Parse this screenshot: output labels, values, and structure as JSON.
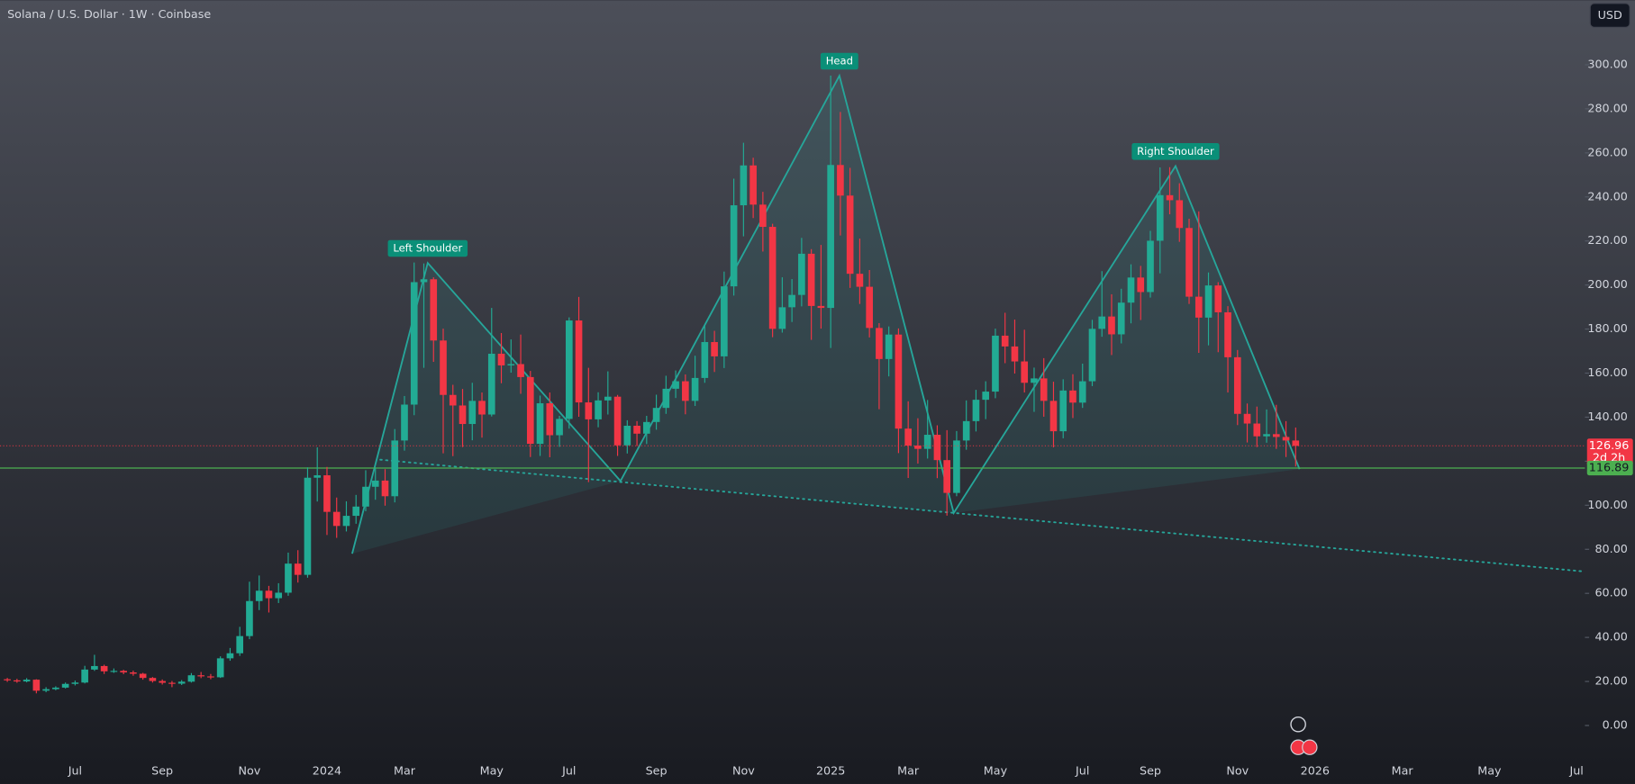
{
  "chart_data": {
    "type": "candlestick",
    "title": "Solana / U.S. Dollar · 1W · Coinbase",
    "currency": "USD",
    "up_color": "#22ab94",
    "down_color": "#f23645",
    "pattern_color": "#26a69a",
    "categories": [
      null,
      null,
      null,
      null,
      null,
      null,
      null,
      "Jul",
      null,
      null,
      null,
      null,
      null,
      null,
      null,
      null,
      "Sep",
      null,
      null,
      null,
      null,
      null,
      null,
      null,
      null,
      "Nov",
      null,
      null,
      null,
      null,
      null,
      null,
      null,
      "2024",
      null,
      null,
      null,
      null,
      null,
      null,
      null,
      "Mar",
      null,
      null,
      null,
      null,
      null,
      null,
      null,
      null,
      "May",
      null,
      null,
      null,
      null,
      null,
      null,
      null,
      "Jul",
      null,
      null,
      null,
      null,
      null,
      null,
      null,
      null,
      "Sep",
      null,
      null,
      null,
      null,
      null,
      null,
      null,
      null,
      "Nov",
      null,
      null,
      null,
      null,
      null,
      null,
      null,
      null,
      "2025",
      null,
      null,
      null,
      null,
      null,
      null,
      null,
      "Mar",
      null,
      null,
      null,
      null,
      null,
      null,
      null,
      null,
      "May",
      null,
      null,
      null,
      null,
      null,
      null,
      null,
      null,
      "Jul",
      null,
      null,
      null,
      null,
      null,
      null,
      "Sep",
      null,
      null,
      null,
      null,
      null,
      null,
      null,
      null,
      "Nov",
      null,
      null,
      null,
      null,
      null,
      null,
      null,
      "2026",
      null,
      null,
      null,
      null,
      null,
      null,
      null,
      null,
      "Mar",
      null,
      null,
      null,
      null,
      null,
      null,
      null,
      null,
      "May",
      null,
      null,
      null,
      null,
      null,
      null,
      null,
      null,
      "Jul",
      null
    ],
    "open": [
      21.0,
      20.5,
      20.0,
      20.8,
      15.8,
      16.5,
      17.2,
      18.9,
      19.5,
      25.4,
      27.0,
      24.6,
      24.8,
      24.1,
      23.5,
      21.6,
      20.2,
      19.4,
      19.0,
      19.9,
      22.8,
      22.3,
      21.9,
      30.5,
      32.8,
      40.6,
      56.5,
      61.2,
      57.8,
      60.3,
      73.5,
      68.4,
      112.5,
      113.6,
      97.0,
      90.6,
      95.2,
      99.4,
      108.4,
      111.2,
      104.1,
      129.4,
      145.7,
      201.3,
      202.6,
      174.8,
      150.1,
      145.3,
      136.9,
      147.4,
      141.2,
      168.8,
      163.5,
      164.1,
      158.2,
      127.9,
      146.3,
      131.8,
      139.2,
      183.9,
      146.7,
      139.0,
      147.6,
      149.3,
      127.2,
      136.1,
      132.5,
      137.8,
      144.2,
      152.9,
      156.3,
      147.4,
      157.8,
      174.1,
      167.6,
      199.4,
      236.2,
      254.3,
      236.5,
      226.4,
      180.1,
      189.9,
      195.5,
      214.2,
      190.5,
      189.6,
      254.5,
      240.6,
      205.1,
      199.2,
      180.5,
      166.4,
      177.5,
      134.8,
      127.1,
      125.6,
      132.0,
      120.5,
      105.6,
      129.4,
      138.2,
      147.9,
      151.6,
      177.0,
      172.1,
      165.3,
      155.6,
      157.6,
      147.4,
      133.6,
      152.1,
      146.6,
      156.3,
      180.1,
      185.7,
      177.6,
      192.0,
      203.4,
      196.8,
      220.1,
      240.8,
      238.5,
      225.9,
      194.7,
      185.2,
      199.8,
      187.6,
      167.2,
      141.5,
      137.1,
      131.3,
      132.3,
      131.0,
      129.4,
      null,
      null,
      null,
      null,
      null,
      null,
      null,
      null,
      null,
      null,
      null,
      null,
      null,
      null,
      null,
      null,
      null,
      null,
      null,
      null,
      null,
      null,
      null,
      null,
      null,
      null,
      null,
      null,
      null,
      null
    ],
    "high": [
      21.6,
      21.2,
      21.5,
      21.0,
      17.4,
      17.8,
      19.5,
      20.4,
      27.1,
      32.1,
      27.6,
      25.9,
      25.3,
      24.9,
      23.9,
      22.0,
      20.9,
      20.2,
      20.6,
      23.8,
      24.3,
      23.4,
      31.4,
      35.2,
      44.8,
      65.3,
      68.1,
      63.4,
      64.6,
      78.5,
      79.6,
      117.2,
      126.3,
      117.4,
      103.5,
      101.8,
      104.7,
      115.9,
      117.2,
      116.4,
      134.6,
      149.6,
      210.2,
      209.8,
      203.5,
      180.2,
      154.7,
      152.8,
      155.6,
      151.2,
      189.6,
      178.2,
      175.3,
      177.5,
      161.0,
      149.8,
      151.2,
      140.6,
      185.3,
      194.6,
      162.4,
      151.3,
      160.8,
      150.1,
      138.6,
      138.2,
      140.6,
      150.2,
      158.8,
      161.2,
      159.4,
      167.9,
      181.4,
      179.2,
      206.1,
      248.3,
      264.6,
      257.8,
      242.3,
      227.8,
      203.5,
      202.7,
      221.4,
      216.3,
      218.2,
      295.1,
      278.6,
      253.2,
      221.1,
      206.8,
      182.7,
      181.2,
      180.3,
      147.2,
      139.5,
      147.8,
      136.3,
      134.1,
      133.7,
      147.6,
      152.4,
      156.3,
      180.2,
      187.4,
      184.3,
      179.7,
      162.5,
      166.8,
      156.1,
      157.2,
      159.5,
      164.3,
      184.2,
      206.3,
      195.8,
      198.3,
      209.4,
      208.7,
      224.6,
      253.4,
      253.5,
      246.2,
      230.1,
      233.4,
      205.7,
      201.3,
      190.4,
      170.5,
      146.2,
      144.8,
      143.5,
      145.6,
      138.2,
      135.3,
      null,
      null,
      null,
      null,
      null,
      null,
      null,
      null,
      null,
      null,
      null,
      null,
      null,
      null,
      null,
      null,
      null,
      null,
      null,
      null,
      null,
      null,
      null,
      null,
      null,
      null,
      null,
      null,
      null,
      null
    ],
    "low": [
      19.8,
      19.4,
      19.6,
      14.6,
      15.1,
      16.0,
      16.8,
      18.2,
      19.1,
      24.8,
      23.4,
      23.9,
      23.3,
      22.6,
      20.8,
      19.5,
      18.6,
      17.4,
      18.4,
      19.5,
      21.5,
      21.0,
      21.6,
      29.4,
      31.6,
      39.2,
      52.4,
      51.3,
      55.6,
      58.9,
      64.9,
      67.1,
      101.7,
      86.5,
      85.2,
      88.1,
      91.6,
      97.3,
      102.5,
      99.8,
      101.3,
      124.8,
      140.9,
      162.4,
      165.1,
      123.6,
      122.3,
      126.4,
      129.5,
      130.7,
      140.3,
      155.4,
      160.2,
      150.6,
      121.9,
      122.4,
      121.8,
      126.5,
      134.8,
      140.2,
      110.5,
      135.4,
      141.2,
      122.4,
      123.5,
      126.9,
      127.8,
      134.3,
      141.5,
      148.7,
      141.3,
      145.1,
      155.6,
      160.5,
      162.3,
      195.2,
      222.1,
      230.4,
      215.2,
      176.3,
      178.4,
      183.2,
      190.3,
      175.1,
      180.2,
      171.4,
      222.5,
      198.7,
      191.4,
      176.2,
      143.6,
      158.5,
      123.7,
      112.4,
      118.9,
      121.2,
      112.3,
      95.3,
      104.1,
      125.2,
      133.5,
      139.1,
      148.6,
      164.5,
      159.8,
      151.2,
      142.4,
      140.2,
      126.3,
      130.4,
      139.6,
      144.2,
      154.1,
      176.5,
      168.2,
      173.5,
      182.6,
      184.1,
      194.3,
      205.3,
      232.1,
      219.6,
      191.4,
      169.2,
      172.6,
      169.5,
      151.2,
      136.4,
      128.5,
      126.4,
      128.4,
      125.6,
      121.9,
      117.6,
      null,
      null,
      null,
      null,
      null,
      null,
      null,
      null,
      null,
      null,
      null,
      null,
      null,
      null,
      null,
      null,
      null,
      null,
      null,
      null,
      null,
      null,
      null,
      null,
      null,
      null,
      null,
      null,
      null,
      null
    ],
    "close": [
      20.5,
      20.0,
      20.8,
      15.8,
      16.5,
      17.2,
      18.9,
      19.5,
      25.4,
      27.0,
      24.6,
      24.8,
      24.1,
      23.5,
      21.6,
      20.2,
      19.4,
      19.0,
      19.9,
      22.8,
      22.3,
      21.9,
      30.5,
      32.8,
      40.6,
      56.5,
      61.2,
      57.8,
      60.3,
      73.5,
      68.4,
      112.5,
      113.6,
      97.0,
      90.6,
      95.2,
      99.4,
      108.4,
      111.2,
      104.1,
      129.4,
      145.7,
      201.3,
      202.6,
      174.8,
      150.1,
      145.3,
      136.9,
      147.4,
      141.2,
      168.8,
      163.5,
      164.1,
      158.2,
      127.9,
      146.3,
      131.8,
      139.2,
      183.9,
      146.7,
      139.0,
      147.6,
      149.3,
      127.2,
      136.1,
      132.5,
      137.8,
      144.2,
      152.9,
      156.3,
      147.4,
      157.8,
      174.1,
      167.6,
      199.4,
      236.2,
      254.3,
      236.5,
      226.4,
      180.1,
      189.9,
      195.5,
      214.2,
      190.5,
      189.6,
      254.5,
      240.6,
      205.1,
      199.2,
      180.5,
      166.4,
      177.5,
      134.8,
      127.1,
      125.6,
      132.0,
      120.5,
      105.6,
      129.4,
      138.2,
      147.9,
      151.6,
      177.0,
      172.1,
      165.3,
      155.6,
      157.6,
      147.4,
      133.6,
      152.1,
      146.6,
      156.3,
      180.1,
      185.7,
      177.6,
      192.0,
      203.4,
      196.8,
      220.1,
      240.8,
      238.5,
      225.9,
      194.7,
      185.2,
      199.8,
      187.6,
      167.2,
      141.5,
      137.1,
      131.3,
      132.3,
      131.0,
      129.4,
      126.96,
      null,
      null,
      null,
      null,
      null,
      null,
      null,
      null,
      null,
      null,
      null,
      null,
      null,
      null,
      null,
      null,
      null,
      null,
      null,
      null,
      null,
      null,
      null,
      null,
      null,
      null,
      null,
      null,
      null,
      null
    ],
    "countdown": "2d 2h",
    "horizontal_line": 116.89,
    "ylim": [
      -15.1,
      329.3
    ],
    "yticks": [
      {
        "value": 0,
        "label": "0.00"
      },
      {
        "value": 20,
        "label": "20.00"
      },
      {
        "value": 40,
        "label": "40.00"
      },
      {
        "value": 60,
        "label": "60.00"
      },
      {
        "value": 80,
        "label": "80.00"
      },
      {
        "value": 100,
        "label": "100.00"
      },
      {
        "value": 120,
        "label": "120.00"
      },
      {
        "value": 140,
        "label": "140.00"
      },
      {
        "value": 160,
        "label": "160.00"
      },
      {
        "value": 180,
        "label": "180.00"
      },
      {
        "value": 200,
        "label": "200.00"
      },
      {
        "value": 220,
        "label": "220.00"
      },
      {
        "value": 240,
        "label": "240.00"
      },
      {
        "value": 260,
        "label": "260.00"
      },
      {
        "value": 280,
        "label": "280.00"
      },
      {
        "value": 300,
        "label": "300.00"
      }
    ],
    "pattern": {
      "points": [
        {
          "x": 35.6,
          "y": 78
        },
        {
          "x": 43.4,
          "y": 210,
          "label": "Left Shoulder"
        },
        {
          "x": 63.3,
          "y": 111
        },
        {
          "x": 85.9,
          "y": 295,
          "label": "Head"
        },
        {
          "x": 97.7,
          "y": 96.5
        },
        {
          "x": 120.6,
          "y": 254,
          "label": "Right Shoulder"
        },
        {
          "x": 133.4,
          "y": 116.4
        }
      ]
    },
    "trendline": [
      {
        "x": 38.5,
        "y": 120.7
      },
      {
        "x": 162.6,
        "y": 70
      }
    ]
  }
}
